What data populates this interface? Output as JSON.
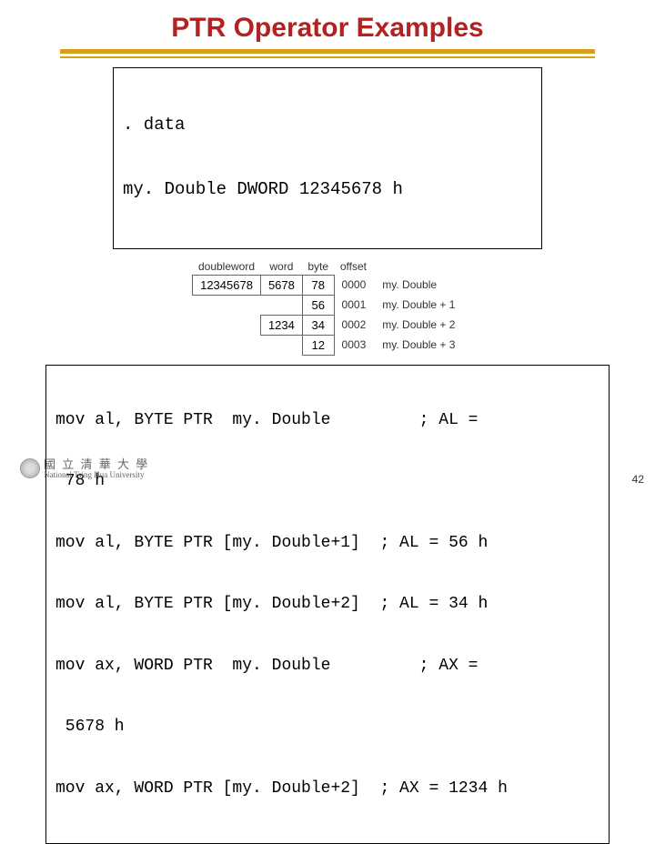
{
  "title": "PTR Operator Examples",
  "dataBlock": {
    "line1": ". data",
    "line2": "my. Double DWORD 12345678 h"
  },
  "memTable": {
    "headers": {
      "dword": "doubleword",
      "word": "word",
      "byte": "byte",
      "offset": "offset"
    },
    "rows": [
      {
        "dword": "12345678",
        "word": "5678",
        "byte": "78",
        "offset": "0000",
        "label": "my. Double"
      },
      {
        "dword": "",
        "word": "",
        "byte": "56",
        "offset": "0001",
        "label": "my. Double + 1"
      },
      {
        "dword": "",
        "word": "1234",
        "byte": "34",
        "offset": "0002",
        "label": "my. Double + 2"
      },
      {
        "dword": "",
        "word": "",
        "byte": "12",
        "offset": "0003",
        "label": "my. Double + 3"
      }
    ],
    "style": {
      "border_color": "#666666",
      "header_fontsize": 12,
      "cell_fontsize": 13,
      "text_color": "#000000",
      "label_color": "#333333"
    }
  },
  "movBlock": {
    "l1a": "mov al, BYTE PTR  my. Double         ; AL =",
    "l1b": " 78 h",
    "l2": "mov al, BYTE PTR [my. Double+1]  ; AL = 56 h",
    "l3": "mov al, BYTE PTR [my. Double+2]  ; AL = 34 h",
    "l4a": "mov ax, WORD PTR  my. Double         ; AX =",
    "l4b": " 5678 h",
    "l5": "mov ax, WORD PTR [my. Double+2]  ; AX = 1234 h"
  },
  "pagenum": "42",
  "university": {
    "cn": "國 立 清 華 大 學",
    "en": "National Tsing Hua University"
  },
  "colors": {
    "title": "#b22222",
    "underline": "#d4a017",
    "background": "#ffffff",
    "border": "#000000"
  }
}
